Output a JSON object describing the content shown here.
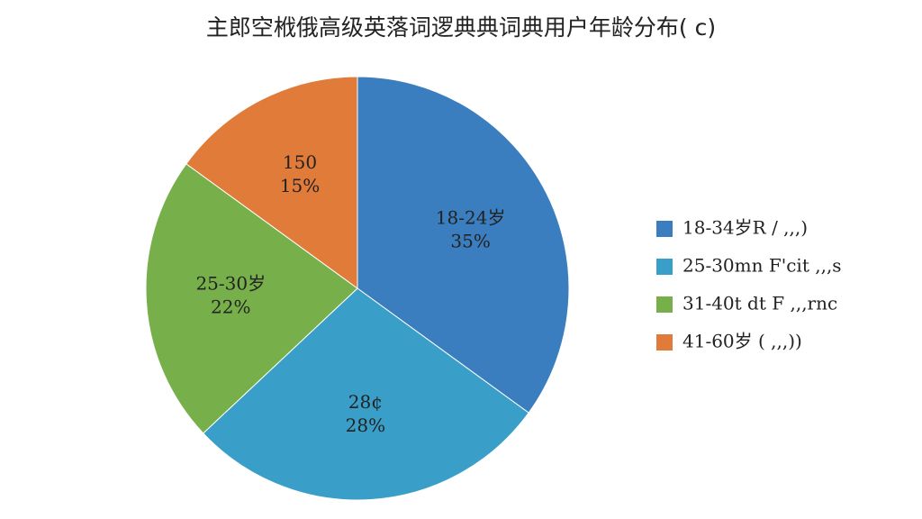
{
  "chart_data": {
    "type": "pie",
    "title": "主郎空栰俄高级英落词逻典典词典用户年龄分布( c)",
    "categories": [
      "18-34岁R / ,,,)",
      "25-30mn F'cit ,,,s",
      "31-40t dt F ,,,rnc",
      "41-60岁 ( ,,,))"
    ],
    "labels": [
      "18-24岁",
      "28¢",
      "25-30岁",
      "150"
    ],
    "values": [
      35,
      28,
      22,
      15
    ],
    "value_labels": [
      "35%",
      "28%",
      "22%",
      "15%"
    ],
    "colors": [
      "#3a7ebf",
      "#3a9fc8",
      "#77b04a",
      "#e07b39"
    ],
    "legend": "right"
  }
}
